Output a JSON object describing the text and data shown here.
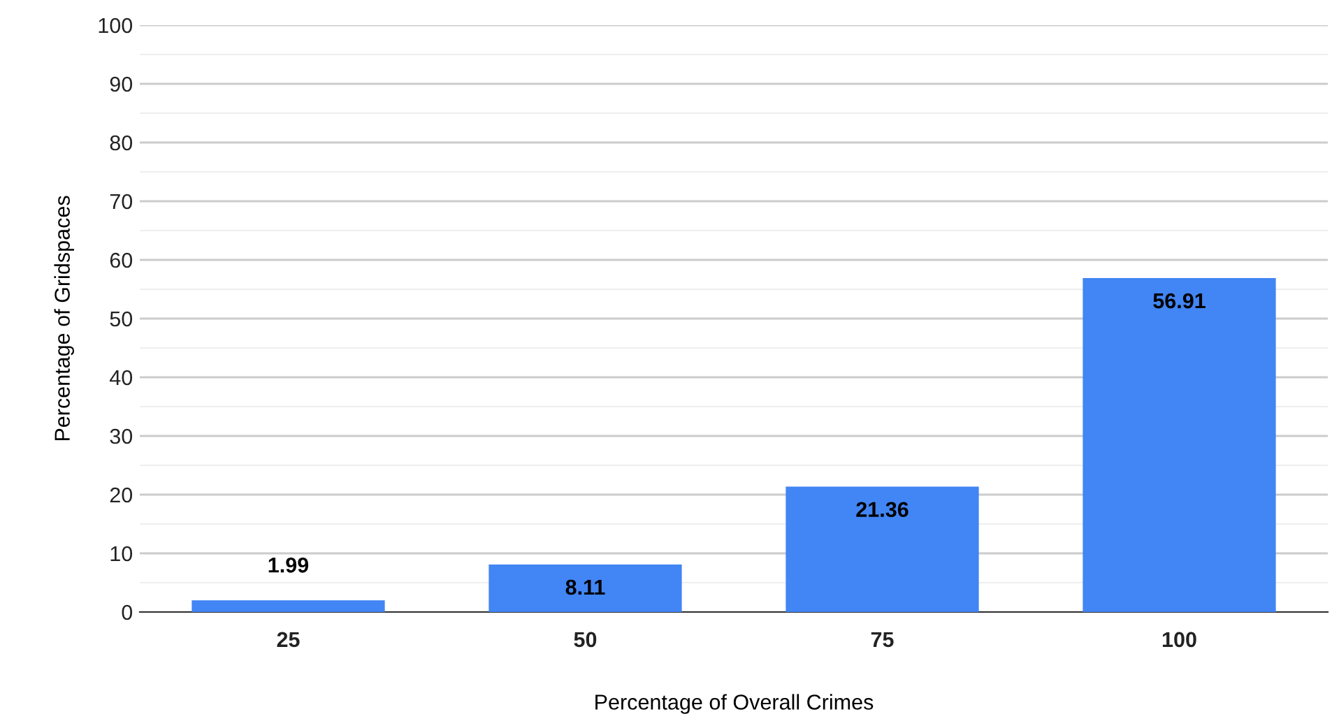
{
  "chart_data": {
    "type": "bar",
    "xlabel": "Percentage of Overall Crimes",
    "ylabel": "Percentage of Gridspaces",
    "categories": [
      "25",
      "50",
      "75",
      "100"
    ],
    "values": [
      1.99,
      8.11,
      21.36,
      56.91
    ],
    "color": "#4285f4",
    "ylim": [
      0,
      100
    ],
    "yticks": [
      0,
      10,
      20,
      30,
      40,
      50,
      60,
      70,
      80,
      90,
      100
    ],
    "grid": "y",
    "data_labels": true
  }
}
